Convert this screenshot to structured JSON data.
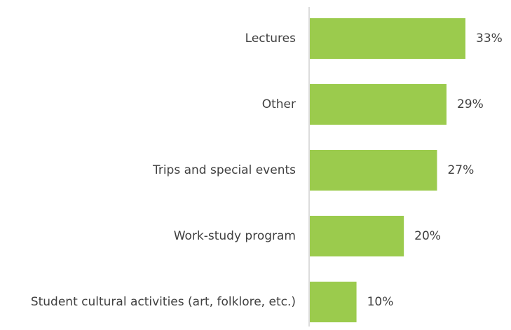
{
  "chart_data": {
    "type": "bar",
    "orientation": "horizontal",
    "categories": [
      "Lectures",
      "Other",
      "Trips and special events",
      "Work-study program",
      "Student cultural activities (art, folklore, etc.)"
    ],
    "values": [
      33,
      29,
      27,
      20,
      10
    ],
    "value_labels": [
      "33%",
      "29%",
      "27%",
      "20%",
      "10%"
    ],
    "color": "#9bcb4d"
  }
}
